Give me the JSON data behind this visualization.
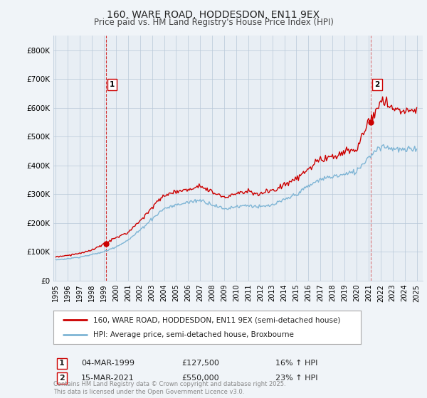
{
  "title": "160, WARE ROAD, HODDESDON, EN11 9EX",
  "subtitle": "Price paid vs. HM Land Registry's House Price Index (HPI)",
  "legend_entry1": "160, WARE ROAD, HODDESDON, EN11 9EX (semi-detached house)",
  "legend_entry2": "HPI: Average price, semi-detached house, Broxbourne",
  "annotation1_date": "04-MAR-1999",
  "annotation1_price": "£127,500",
  "annotation1_hpi": "16% ↑ HPI",
  "annotation2_date": "15-MAR-2021",
  "annotation2_price": "£550,000",
  "annotation2_hpi": "23% ↑ HPI",
  "footer": "Contains HM Land Registry data © Crown copyright and database right 2025.\nThis data is licensed under the Open Government Licence v3.0.",
  "color_red": "#cc0000",
  "color_blue": "#7fb5d5",
  "background": "#f0f4f8",
  "plot_bg": "#e8eef4",
  "ylim": [
    0,
    850000
  ],
  "yticks": [
    0,
    100000,
    200000,
    300000,
    400000,
    500000,
    600000,
    700000,
    800000
  ],
  "ytick_labels": [
    "£0",
    "£100K",
    "£200K",
    "£300K",
    "£400K",
    "£500K",
    "£600K",
    "£700K",
    "£800K"
  ],
  "sale1_year": 1999.17,
  "sale1_price": 127500,
  "sale2_year": 2021.21,
  "sale2_price": 550000,
  "vline1_year": 1999.17,
  "vline2_year": 2021.21,
  "xtick_years": [
    1995,
    1996,
    1997,
    1998,
    1999,
    2000,
    2001,
    2002,
    2003,
    2004,
    2005,
    2006,
    2007,
    2008,
    2009,
    2010,
    2011,
    2012,
    2013,
    2014,
    2015,
    2016,
    2017,
    2018,
    2019,
    2020,
    2021,
    2022,
    2023,
    2024,
    2025
  ]
}
